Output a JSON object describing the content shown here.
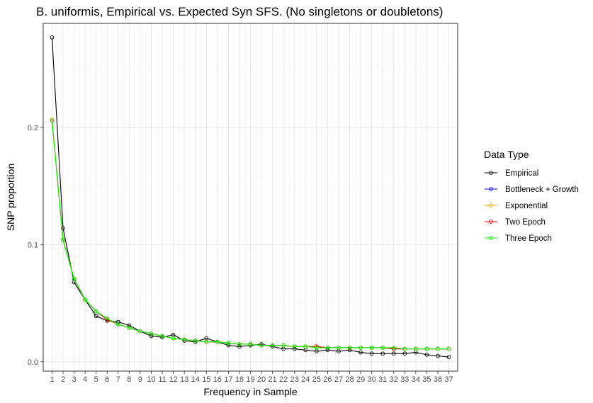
{
  "chart_data": {
    "type": "line",
    "title": "B. uniformis, Empirical vs. Expected Syn SFS. (No singletons or doubletons)",
    "xlabel": "Frequency in Sample",
    "ylabel": "SNP proportion",
    "x": [
      1,
      2,
      3,
      4,
      5,
      6,
      7,
      8,
      9,
      10,
      11,
      12,
      13,
      14,
      15,
      16,
      17,
      18,
      19,
      20,
      21,
      22,
      23,
      24,
      25,
      26,
      27,
      28,
      29,
      30,
      31,
      32,
      33,
      34,
      35,
      36,
      37
    ],
    "xlim": [
      0.2,
      37.8
    ],
    "ylim": [
      -0.008,
      0.289
    ],
    "yticks": [
      0.0,
      0.1,
      0.2
    ],
    "ytick_labels": [
      "0.0",
      "0.1",
      "0.2"
    ],
    "grid": true,
    "legend": {
      "title": "Data Type",
      "position": "right"
    },
    "series": [
      {
        "name": "Empirical",
        "color": "#000000",
        "values": [
          0.277,
          0.114,
          0.068,
          0.053,
          0.039,
          0.035,
          0.034,
          0.031,
          0.026,
          0.022,
          0.021,
          0.023,
          0.018,
          0.017,
          0.02,
          0.017,
          0.014,
          0.013,
          0.014,
          0.015,
          0.013,
          0.011,
          0.011,
          0.01,
          0.009,
          0.01,
          0.009,
          0.01,
          0.008,
          0.007,
          0.007,
          0.007,
          0.007,
          0.008,
          0.006,
          0.005,
          0.004
        ]
      },
      {
        "name": "Bottleneck + Growth",
        "color": "#0000ff",
        "values": [
          0.206,
          0.104,
          0.071,
          0.053,
          0.043,
          0.036,
          0.032,
          0.029,
          0.026,
          0.024,
          0.022,
          0.02,
          0.019,
          0.018,
          0.017,
          0.017,
          0.016,
          0.015,
          0.015,
          0.014,
          0.014,
          0.014,
          0.013,
          0.013,
          0.013,
          0.012,
          0.012,
          0.012,
          0.012,
          0.012,
          0.012,
          0.011,
          0.011,
          0.011,
          0.011,
          0.011,
          0.011
        ]
      },
      {
        "name": "Exponential",
        "color": "#ffa500",
        "values": [
          0.207,
          0.104,
          0.071,
          0.053,
          0.043,
          0.036,
          0.032,
          0.029,
          0.026,
          0.024,
          0.022,
          0.02,
          0.019,
          0.018,
          0.017,
          0.017,
          0.016,
          0.015,
          0.015,
          0.014,
          0.014,
          0.014,
          0.013,
          0.013,
          0.013,
          0.012,
          0.012,
          0.012,
          0.012,
          0.012,
          0.012,
          0.011,
          0.011,
          0.011,
          0.011,
          0.011,
          0.011
        ]
      },
      {
        "name": "Two Epoch",
        "color": "#ff0000",
        "values": [
          0.206,
          0.104,
          0.071,
          0.053,
          0.043,
          0.036,
          0.032,
          0.029,
          0.026,
          0.024,
          0.022,
          0.02,
          0.019,
          0.018,
          0.017,
          0.017,
          0.016,
          0.015,
          0.015,
          0.014,
          0.014,
          0.014,
          0.013,
          0.013,
          0.013,
          0.012,
          0.012,
          0.012,
          0.012,
          0.012,
          0.012,
          0.011,
          0.011,
          0.011,
          0.011,
          0.011,
          0.011
        ]
      },
      {
        "name": "Three Epoch",
        "color": "#00ff00",
        "values": [
          0.206,
          0.104,
          0.071,
          0.053,
          0.043,
          0.037,
          0.032,
          0.029,
          0.026,
          0.024,
          0.022,
          0.02,
          0.019,
          0.018,
          0.017,
          0.017,
          0.016,
          0.015,
          0.015,
          0.014,
          0.014,
          0.014,
          0.013,
          0.013,
          0.012,
          0.012,
          0.012,
          0.012,
          0.012,
          0.012,
          0.012,
          0.012,
          0.011,
          0.011,
          0.011,
          0.011,
          0.011
        ]
      }
    ]
  }
}
